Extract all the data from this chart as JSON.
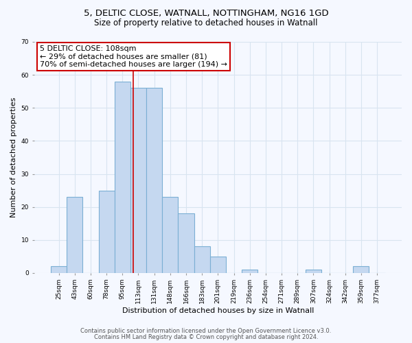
{
  "title1": "5, DELTIC CLOSE, WATNALL, NOTTINGHAM, NG16 1GD",
  "title2": "Size of property relative to detached houses in Watnall",
  "xlabel": "Distribution of detached houses by size in Watnall",
  "ylabel": "Number of detached properties",
  "categories": [
    "25sqm",
    "43sqm",
    "60sqm",
    "78sqm",
    "95sqm",
    "113sqm",
    "131sqm",
    "148sqm",
    "166sqm",
    "183sqm",
    "201sqm",
    "219sqm",
    "236sqm",
    "254sqm",
    "271sqm",
    "289sqm",
    "307sqm",
    "324sqm",
    "342sqm",
    "359sqm",
    "377sqm"
  ],
  "values": [
    2,
    23,
    0,
    25,
    58,
    56,
    56,
    23,
    18,
    8,
    5,
    0,
    1,
    0,
    0,
    0,
    1,
    0,
    0,
    2,
    0
  ],
  "bar_color": "#c5d8f0",
  "bar_edge_color": "#7bafd4",
  "red_line_x": 4.68,
  "annotation_line1": "5 DELTIC CLOSE: 108sqm",
  "annotation_line2": "← 29% of detached houses are smaller (81)",
  "annotation_line3": "70% of semi-detached houses are larger (194) →",
  "annotation_box_color": "#ffffff",
  "annotation_box_edge_color": "#cc0000",
  "ylim": [
    0,
    70
  ],
  "yticks": [
    0,
    10,
    20,
    30,
    40,
    50,
    60,
    70
  ],
  "footer1": "Contains HM Land Registry data © Crown copyright and database right 2024.",
  "footer2": "Contains public sector information licensed under the Open Government Licence v3.0.",
  "background_color": "#f5f8ff",
  "plot_bg_color": "#f5f8ff",
  "grid_color": "#d8e4f0",
  "title_fontsize": 9.5,
  "subtitle_fontsize": 8.5,
  "axis_label_fontsize": 8,
  "tick_fontsize": 6.5,
  "annotation_fontsize": 8,
  "footer_fontsize": 6
}
